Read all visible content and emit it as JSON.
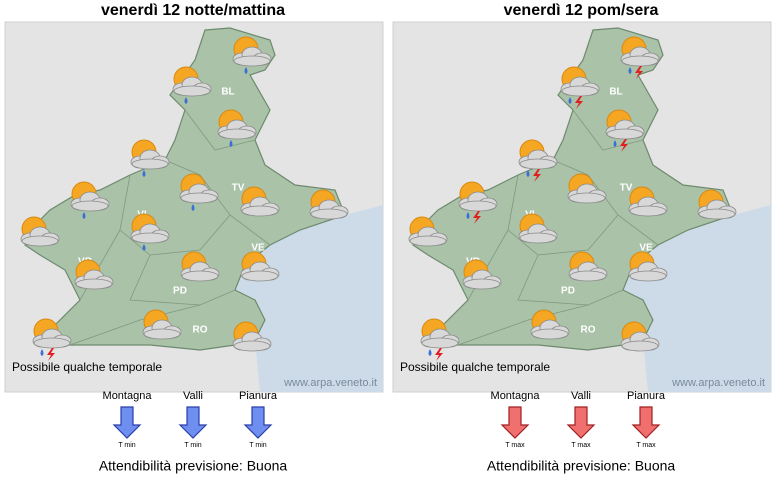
{
  "panels": [
    {
      "title": "venerdì 12 notte/mattina",
      "provinces": [
        "BL",
        "TV",
        "VI",
        "VR",
        "PD",
        "VE",
        "RO"
      ],
      "note": "Possibile qualche temporale",
      "credit": "www.arpa.veneto.it",
      "zones": [
        {
          "name": "Montagna",
          "label": "T min"
        },
        {
          "name": "Valli",
          "label": "T min"
        },
        {
          "name": "Pianura",
          "label": "T min"
        }
      ],
      "reliability": "Attendibilità previsione: Buona"
    },
    {
      "title": "venerdì 12 pom/sera",
      "provinces": [
        "BL",
        "TV",
        "VI",
        "VR",
        "PD",
        "VE",
        "RO"
      ],
      "note": "Possibile qualche temporale",
      "credit": "www.arpa.veneto.it",
      "zones": [
        {
          "name": "Montagna",
          "label": "T max"
        },
        {
          "name": "Valli",
          "label": "T max"
        },
        {
          "name": "Pianura",
          "label": "T max"
        }
      ],
      "reliability": "Attendibilità previsione: Buona"
    }
  ]
}
